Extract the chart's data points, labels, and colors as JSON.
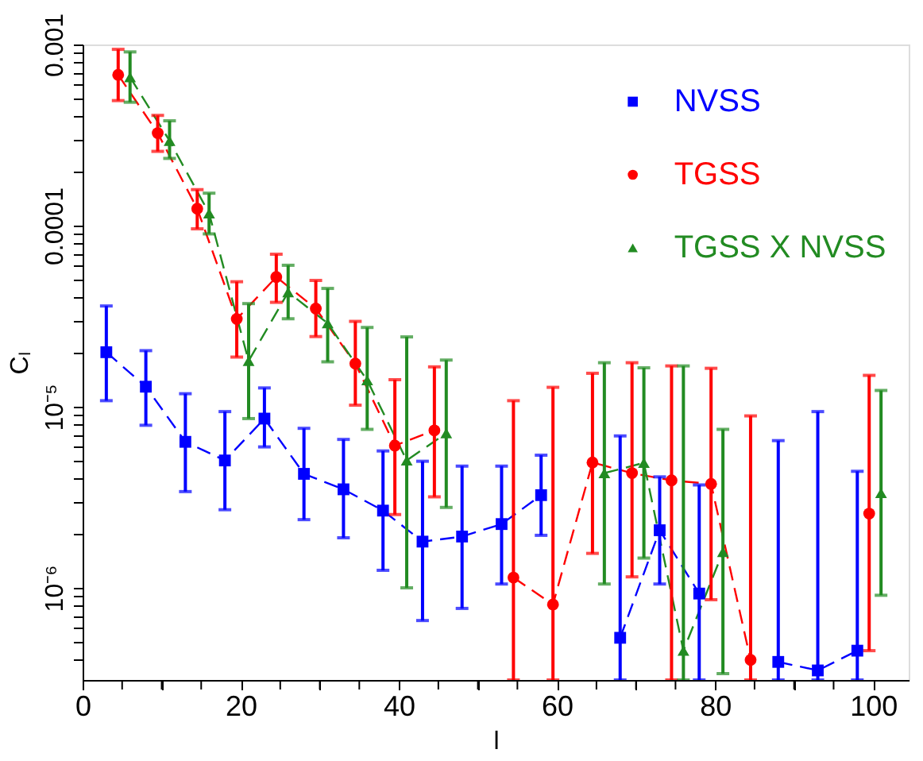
{
  "chart_data": {
    "type": "line",
    "xlabel": "l",
    "ylabel": "Cₗ",
    "xlim": [
      0,
      104.5
    ],
    "xticks": [
      0,
      {
        "value": 5,
        "label": null
      },
      {
        "value": 10,
        "label": null
      },
      {
        "value": 15,
        "label": null
      },
      20,
      {
        "value": 25,
        "label": null
      },
      {
        "value": 30,
        "label": null
      },
      {
        "value": 35,
        "label": null
      },
      40,
      {
        "value": 45,
        "label": null
      },
      {
        "value": 50,
        "label": null
      },
      {
        "value": 55,
        "label": null
      },
      60,
      {
        "value": 65,
        "label": null
      },
      {
        "value": 70,
        "label": null
      },
      {
        "value": 75,
        "label": null
      },
      80,
      {
        "value": 85,
        "label": null
      },
      {
        "value": 90,
        "label": null
      },
      {
        "value": 95,
        "label": null
      },
      100
    ],
    "log": true,
    "ylim": [
      3.1e-07,
      0.001
    ],
    "yticks": [
      {
        "value": 4e-07,
        "label": null
      },
      {
        "value": 5e-07,
        "label": null
      },
      {
        "value": 6e-07,
        "label": null
      },
      {
        "value": 7e-07,
        "label": null
      },
      {
        "value": 8e-07,
        "label": null
      },
      {
        "value": 9e-07,
        "label": null
      },
      {
        "value": 1e-06,
        "label": "10⁻⁶"
      },
      {
        "value": 2e-06,
        "label": null
      },
      {
        "value": 3e-06,
        "label": null
      },
      {
        "value": 4e-06,
        "label": null
      },
      {
        "value": 5e-06,
        "label": null
      },
      {
        "value": 6e-06,
        "label": null
      },
      {
        "value": 7e-06,
        "label": null
      },
      {
        "value": 8e-06,
        "label": null
      },
      {
        "value": 9e-06,
        "label": null
      },
      {
        "value": 1e-05,
        "label": "10⁻⁵"
      },
      {
        "value": 2e-05,
        "label": null
      },
      {
        "value": 3e-05,
        "label": null
      },
      {
        "value": 4e-05,
        "label": null
      },
      {
        "value": 5e-05,
        "label": null
      },
      {
        "value": 6e-05,
        "label": null
      },
      {
        "value": 7e-05,
        "label": null
      },
      {
        "value": 8e-05,
        "label": null
      },
      {
        "value": 9e-05,
        "label": null
      },
      {
        "value": 0.0001,
        "label": "0.0001"
      },
      {
        "value": 0.0002,
        "label": null
      },
      {
        "value": 0.0003,
        "label": null
      },
      {
        "value": 0.0004,
        "label": null
      },
      {
        "value": 0.0005,
        "label": null
      },
      {
        "value": 0.0006,
        "label": null
      },
      {
        "value": 0.0007,
        "label": null
      },
      {
        "value": 0.0008,
        "label": null
      },
      {
        "value": 0.0009,
        "label": null
      },
      {
        "value": 0.001,
        "label": "0.001"
      }
    ],
    "grid": false,
    "legend": "top right",
    "line_style": "dashed",
    "series": [
      {
        "name": "NVSS",
        "color": "#0000ff",
        "marker": "square",
        "x": [
          3,
          8,
          13,
          18,
          23,
          28,
          33,
          38,
          43,
          48,
          53,
          58,
          63,
          68,
          73,
          78,
          83,
          88,
          93,
          98
        ],
        "values": [
          2e-05,
          1.29e-05,
          6.4e-06,
          5.05e-06,
          8.6e-06,
          4.26e-06,
          3.5e-06,
          2.67e-06,
          1.8e-06,
          1.92e-06,
          2.25e-06,
          3.25e-06,
          null,
          5.3e-07,
          2.08e-06,
          9.3e-07,
          null,
          3.9e-07,
          3.5e-07,
          4.5e-07
        ],
        "errors": [
          [
            1.08e-05,
            3.6e-05
          ],
          [
            7.9e-06,
            2.04e-05
          ],
          [
            3.4e-06,
            1.18e-05
          ],
          [
            2.7e-06,
            9.4e-06
          ],
          [
            6e-06,
            1.27e-05
          ],
          [
            2.38e-06,
            7.6e-06
          ],
          [
            1.89e-06,
            6.6e-06
          ],
          [
            1.25e-06,
            5.7e-06
          ],
          [
            6.6e-07,
            5e-06
          ],
          [
            7.7e-07,
            4.7e-06
          ],
          [
            1.05e-06,
            4.7e-06
          ],
          [
            1.95e-06,
            5.4e-06
          ],
          null,
          [
            3.1e-07,
            6.9e-06
          ],
          [
            1.05e-06,
            4.1e-06
          ],
          [
            3.1e-07,
            3.7e-06
          ],
          null,
          [
            3.1e-07,
            6.5e-06
          ],
          [
            3.1e-07,
            9.4e-06
          ],
          [
            3.1e-07,
            4.4e-06
          ]
        ]
      },
      {
        "name": "TGSS",
        "color": "#ff0000",
        "marker": "circle",
        "x": [
          4.5,
          9.5,
          14.5,
          19.5,
          24.5,
          29.5,
          34.5,
          39.5,
          44.5,
          49.5,
          54.5,
          59.5,
          64.5,
          69.5,
          74.5,
          79.5,
          84.5,
          89.5,
          94.5,
          99.5
        ],
        "values": [
          0.00068,
          0.000324,
          0.000124,
          3.05e-05,
          5.2e-05,
          3.48e-05,
          1.73e-05,
          6.1e-06,
          7.4e-06,
          null,
          1.14e-06,
          8.1e-07,
          4.92e-06,
          4.3e-06,
          3.92e-06,
          3.75e-06,
          4e-07,
          null,
          null,
          2.57e-06
        ],
        "errors": [
          [
            0.00049,
            0.00094
          ],
          [
            0.000257,
            0.000406
          ],
          [
            9.6e-05,
            0.000158
          ],
          [
            1.88e-05,
            4.9e-05
          ],
          [
            3.77e-05,
            6.95e-05
          ],
          [
            2.44e-05,
            4.98e-05
          ],
          [
            1.02e-05,
            2.96e-05
          ],
          [
            2.54e-06,
            1.41e-05
          ],
          [
            3.18e-06,
            1.66e-05
          ],
          null,
          [
            3.1e-07,
            1.08e-05
          ],
          [
            3.1e-07,
            1.28e-05
          ],
          [
            1.55e-06,
            1.53e-05
          ],
          [
            1.15e-06,
            1.75e-05
          ],
          [
            3.1e-07,
            1.68e-05
          ],
          [
            8.6e-07,
            1.63e-05
          ],
          [
            3.1e-07,
            8.9e-06
          ],
          null,
          null,
          [
            4.5e-07,
            1.49e-05
          ]
        ]
      },
      {
        "name": "TGSS X NVSS",
        "color": "#228b22",
        "marker": "triangle",
        "x": [
          6,
          11,
          16,
          21,
          26,
          31,
          36,
          41,
          46,
          51,
          56,
          61,
          66,
          71,
          76,
          81,
          86,
          91,
          96,
          101
        ],
        "values": [
          0.00066,
          0.000294,
          0.000117,
          1.79e-05,
          4.29e-05,
          2.89e-05,
          1.4e-05,
          5.05e-06,
          7.15e-06,
          null,
          null,
          null,
          4.3e-06,
          4.9e-06,
          4.5e-07,
          1.58e-06,
          null,
          null,
          null,
          3.34e-06
        ],
        "errors": [
          [
            0.00048,
            0.00091
          ],
          [
            0.000235,
            0.000379
          ],
          [
            9e-05,
            0.000151
          ],
          [
            8.6e-06,
            3.71e-05
          ],
          [
            3.06e-05,
            6.04e-05
          ],
          [
            1.77e-05,
            4.5e-05
          ],
          [
            7.5e-06,
            2.74e-05
          ],
          [
            1e-06,
            2.43e-05
          ],
          [
            2.78e-06,
            1.81e-05
          ],
          null,
          null,
          null,
          [
            1.05e-06,
            1.75e-05
          ],
          [
            1.46e-06,
            1.64e-05
          ],
          [
            3.1e-07,
            1.68e-05
          ],
          [
            3.36e-07,
            7.5e-06
          ],
          null,
          null,
          null,
          [
            9.1e-07,
            1.23e-05
          ]
        ]
      }
    ]
  }
}
